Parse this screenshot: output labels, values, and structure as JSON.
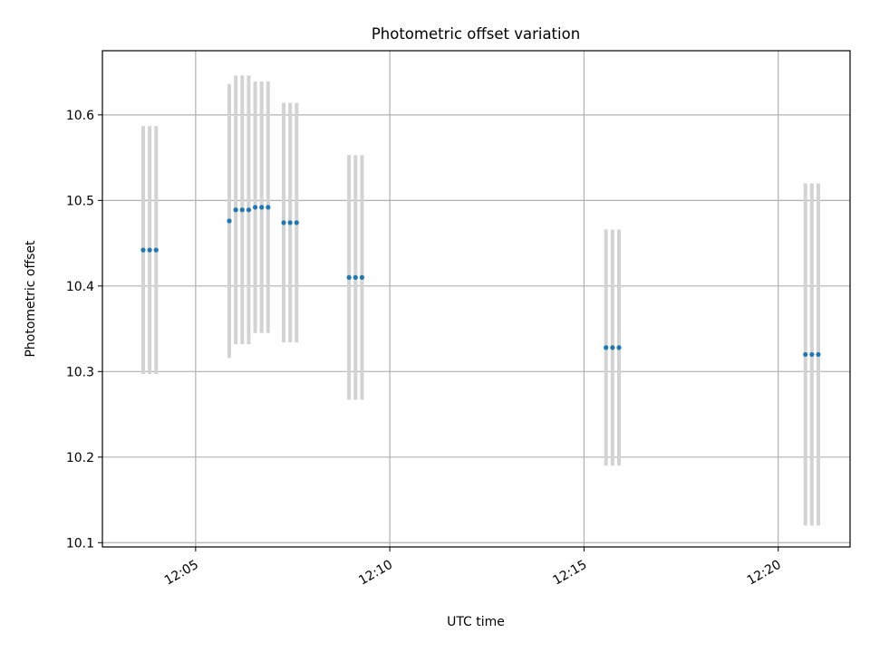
{
  "chart_data": {
    "type": "scatter",
    "title": "Photometric offset variation",
    "xlabel": "UTC time",
    "ylabel": "Photometric offset",
    "xlim": [
      "12:02:36",
      "12:21:51"
    ],
    "ylim": [
      10.095,
      10.675
    ],
    "x_ticks": [
      "12:05",
      "12:10",
      "12:15",
      "12:20"
    ],
    "y_ticks": [
      "10.1",
      "10.2",
      "10.3",
      "10.4",
      "10.5",
      "10.6"
    ],
    "grid": true,
    "colors": {
      "marker": "#1f77b4",
      "errorbar": "#d3d3d3",
      "grid": "#b0b0b0"
    },
    "points": [
      {
        "x": "12:03:39",
        "y": 10.442,
        "yerr": 0.145
      },
      {
        "x": "12:03:49",
        "y": 10.442,
        "yerr": 0.145
      },
      {
        "x": "12:03:59",
        "y": 10.442,
        "yerr": 0.145
      },
      {
        "x": "12:05:52",
        "y": 10.476,
        "yerr": 0.16
      },
      {
        "x": "12:06:02",
        "y": 10.489,
        "yerr": 0.157
      },
      {
        "x": "12:06:12",
        "y": 10.489,
        "yerr": 0.157
      },
      {
        "x": "12:06:22",
        "y": 10.489,
        "yerr": 0.157
      },
      {
        "x": "12:06:32",
        "y": 10.492,
        "yerr": 0.147
      },
      {
        "x": "12:06:42",
        "y": 10.492,
        "yerr": 0.147
      },
      {
        "x": "12:06:52",
        "y": 10.492,
        "yerr": 0.147
      },
      {
        "x": "12:07:16",
        "y": 10.474,
        "yerr": 0.14
      },
      {
        "x": "12:07:26",
        "y": 10.474,
        "yerr": 0.14
      },
      {
        "x": "12:07:36",
        "y": 10.474,
        "yerr": 0.14
      },
      {
        "x": "12:08:57",
        "y": 10.41,
        "yerr": 0.143
      },
      {
        "x": "12:09:07",
        "y": 10.41,
        "yerr": 0.143
      },
      {
        "x": "12:09:17",
        "y": 10.41,
        "yerr": 0.143
      },
      {
        "x": "12:15:34",
        "y": 10.328,
        "yerr": 0.138
      },
      {
        "x": "12:15:44",
        "y": 10.328,
        "yerr": 0.138
      },
      {
        "x": "12:15:54",
        "y": 10.328,
        "yerr": 0.138
      },
      {
        "x": "12:20:42",
        "y": 10.32,
        "yerr": 0.2
      },
      {
        "x": "12:20:52",
        "y": 10.32,
        "yerr": 0.2
      },
      {
        "x": "12:21:02",
        "y": 10.32,
        "yerr": 0.2
      }
    ]
  }
}
